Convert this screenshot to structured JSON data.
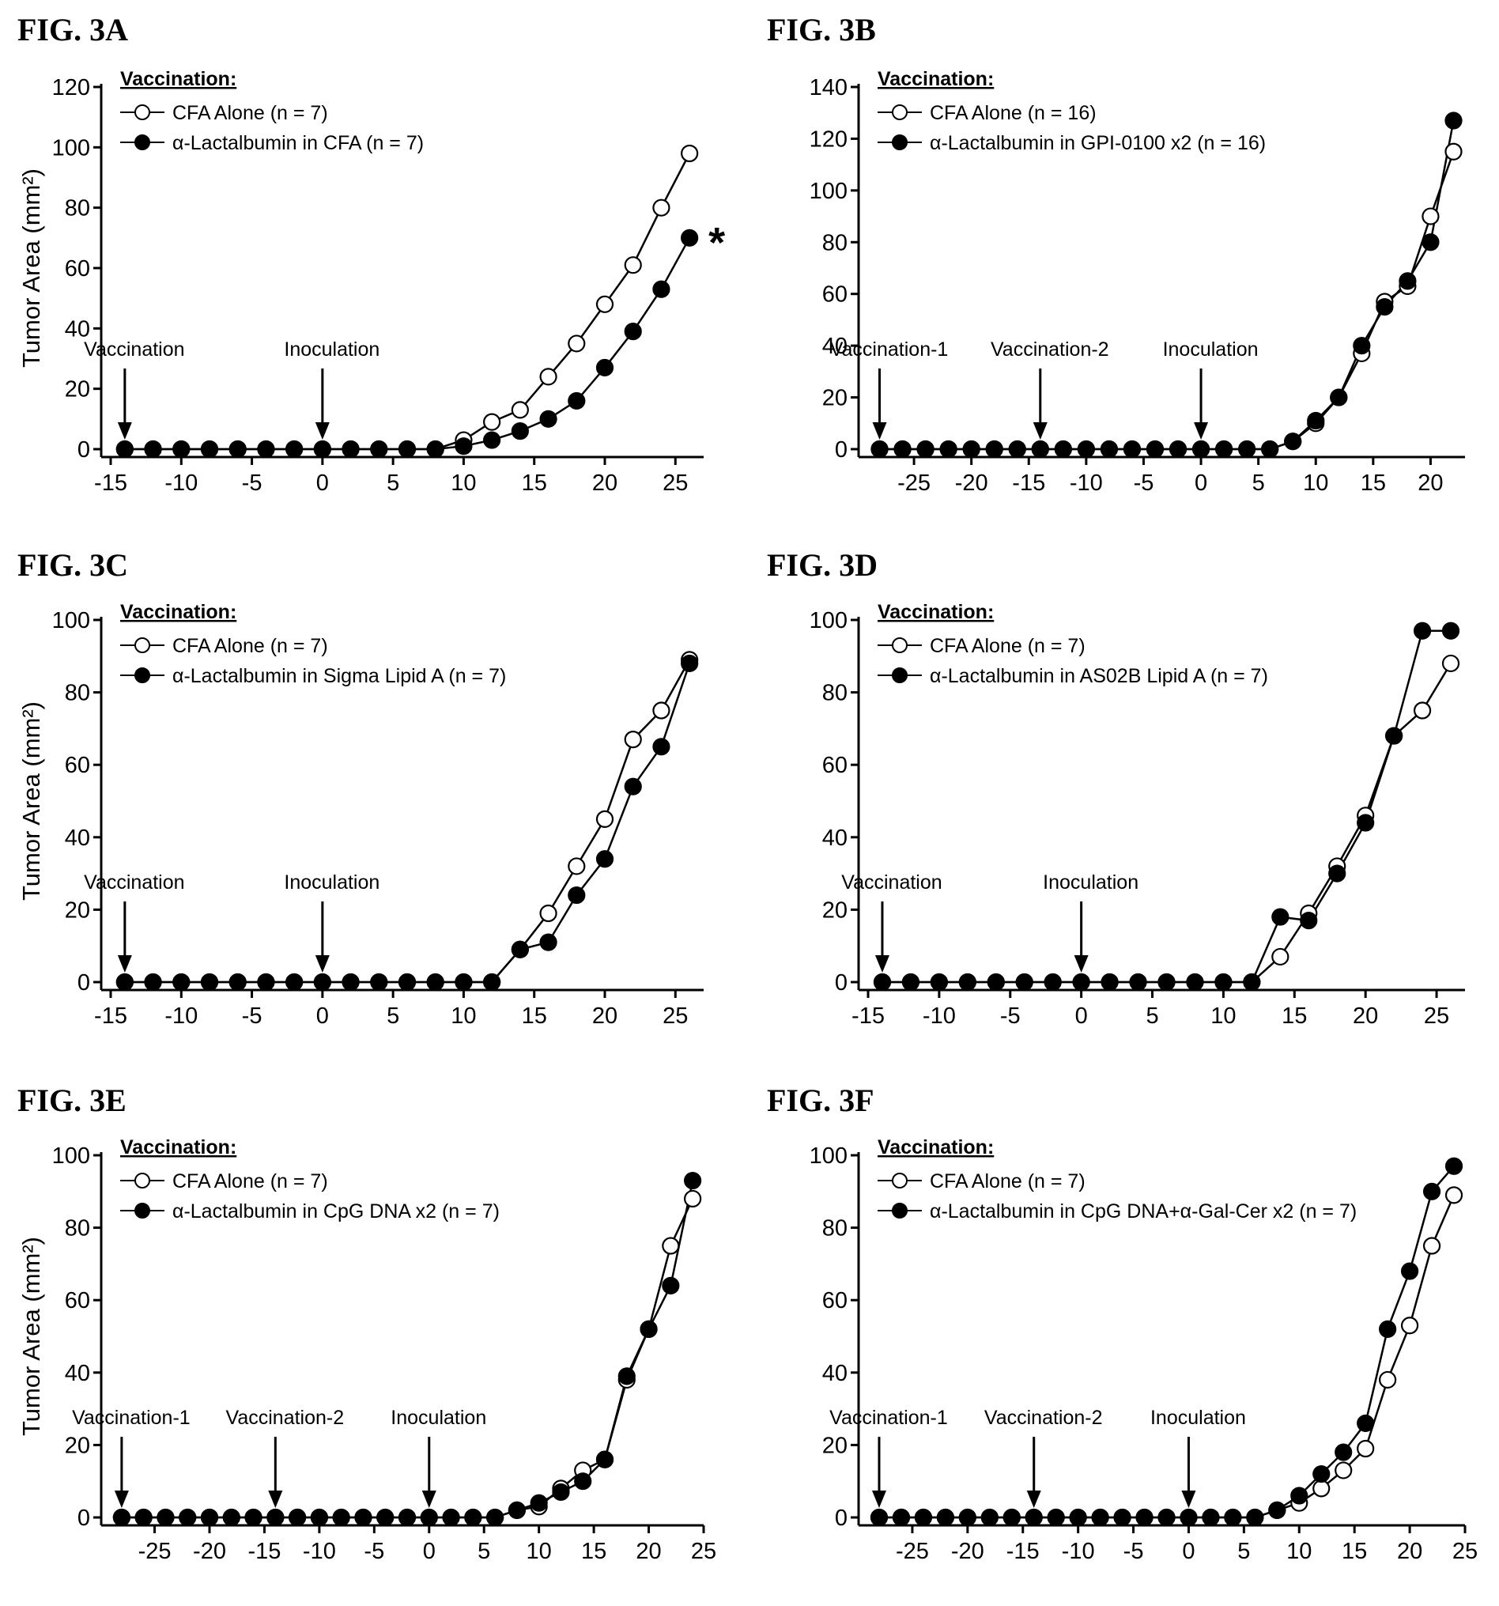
{
  "chart_data": [
    {
      "panel_label": "FIG. 3A",
      "type": "line",
      "ylabel": "Tumor Area (mm²)",
      "xlabel": "",
      "xlim": [
        -15,
        27
      ],
      "ylim": [
        0,
        120
      ],
      "xticks": [
        -15,
        -10,
        -5,
        0,
        5,
        10,
        15,
        20,
        25
      ],
      "yticks": [
        0,
        20,
        40,
        60,
        80,
        100,
        120
      ],
      "legend_title": "Vaccination:",
      "legend_position": "top-left",
      "series": [
        {
          "name": "CFA Alone (n = 7)",
          "marker": "open",
          "x": [
            -14,
            -12,
            -10,
            -8,
            -6,
            -4,
            -2,
            0,
            2,
            4,
            6,
            8,
            10,
            12,
            14,
            16,
            18,
            20,
            22,
            24,
            26
          ],
          "y": [
            0,
            0,
            0,
            0,
            0,
            0,
            0,
            0,
            0,
            0,
            0,
            0,
            3,
            9,
            13,
            24,
            35,
            48,
            61,
            80,
            98
          ]
        },
        {
          "name": "α-Lactalbumin in CFA (n = 7)",
          "marker": "filled",
          "x": [
            -14,
            -12,
            -10,
            -8,
            -6,
            -4,
            -2,
            0,
            2,
            4,
            6,
            8,
            10,
            12,
            14,
            16,
            18,
            20,
            22,
            24,
            26
          ],
          "y": [
            0,
            0,
            0,
            0,
            0,
            0,
            0,
            0,
            0,
            0,
            0,
            0,
            1,
            3,
            6,
            10,
            16,
            27,
            39,
            53,
            70
          ]
        }
      ],
      "annotations": [
        {
          "text": "Vaccination",
          "x": -14
        },
        {
          "text": "Inoculation",
          "x": 0
        }
      ],
      "significance": {
        "text": "*",
        "x": 26,
        "y": 70
      }
    },
    {
      "panel_label": "FIG. 3B",
      "type": "line",
      "ylabel": "",
      "xlabel": "",
      "xlim": [
        -29,
        23
      ],
      "ylim": [
        0,
        140
      ],
      "xticks": [
        -25,
        -20,
        -15,
        -10,
        -5,
        0,
        5,
        10,
        15,
        20
      ],
      "yticks": [
        0,
        20,
        40,
        60,
        80,
        100,
        120,
        140
      ],
      "legend_title": "Vaccination:",
      "legend_position": "top-left",
      "series": [
        {
          "name": "CFA Alone (n = 16)",
          "marker": "open",
          "x": [
            -28,
            -26,
            -24,
            -22,
            -20,
            -18,
            -16,
            -14,
            -12,
            -10,
            -8,
            -6,
            -4,
            -2,
            0,
            2,
            4,
            6,
            8,
            10,
            12,
            14,
            16,
            18,
            20,
            22
          ],
          "y": [
            0,
            0,
            0,
            0,
            0,
            0,
            0,
            0,
            0,
            0,
            0,
            0,
            0,
            0,
            0,
            0,
            0,
            0,
            3,
            10,
            20,
            37,
            57,
            63,
            90,
            115
          ]
        },
        {
          "name": "α-Lactalbumin in GPI-0100 x2 (n = 16)",
          "marker": "filled",
          "x": [
            -28,
            -26,
            -24,
            -22,
            -20,
            -18,
            -16,
            -14,
            -12,
            -10,
            -8,
            -6,
            -4,
            -2,
            0,
            2,
            4,
            6,
            8,
            10,
            12,
            14,
            16,
            18,
            20,
            22
          ],
          "y": [
            0,
            0,
            0,
            0,
            0,
            0,
            0,
            0,
            0,
            0,
            0,
            0,
            0,
            0,
            0,
            0,
            0,
            0,
            3,
            11,
            20,
            40,
            55,
            65,
            80,
            127
          ]
        }
      ],
      "annotations": [
        {
          "text": "Vaccination-1",
          "x": -28
        },
        {
          "text": "Vaccination-2",
          "x": -14
        },
        {
          "text": "Inoculation",
          "x": 0
        }
      ]
    },
    {
      "panel_label": "FIG. 3C",
      "type": "line",
      "ylabel": "Tumor Area (mm²)",
      "xlabel": "",
      "xlim": [
        -15,
        27
      ],
      "ylim": [
        0,
        100
      ],
      "xticks": [
        -15,
        -10,
        -5,
        0,
        5,
        10,
        15,
        20,
        25
      ],
      "yticks": [
        0,
        20,
        40,
        60,
        80,
        100
      ],
      "legend_title": "Vaccination:",
      "legend_position": "top-left",
      "series": [
        {
          "name": "CFA Alone (n = 7)",
          "marker": "open",
          "x": [
            -14,
            -12,
            -10,
            -8,
            -6,
            -4,
            -2,
            0,
            2,
            4,
            6,
            8,
            10,
            12,
            14,
            16,
            18,
            20,
            22,
            24,
            26
          ],
          "y": [
            0,
            0,
            0,
            0,
            0,
            0,
            0,
            0,
            0,
            0,
            0,
            0,
            0,
            0,
            9,
            19,
            32,
            45,
            67,
            75,
            89
          ]
        },
        {
          "name": "α-Lactalbumin in Sigma Lipid A (n = 7)",
          "marker": "filled",
          "x": [
            -14,
            -12,
            -10,
            -8,
            -6,
            -4,
            -2,
            0,
            2,
            4,
            6,
            8,
            10,
            12,
            14,
            16,
            18,
            20,
            22,
            24,
            26
          ],
          "y": [
            0,
            0,
            0,
            0,
            0,
            0,
            0,
            0,
            0,
            0,
            0,
            0,
            0,
            0,
            9,
            11,
            24,
            34,
            54,
            65,
            88
          ]
        }
      ],
      "annotations": [
        {
          "text": "Vaccination",
          "x": -14
        },
        {
          "text": "Inoculation",
          "x": 0
        }
      ]
    },
    {
      "panel_label": "FIG. 3D",
      "type": "line",
      "ylabel": "",
      "xlabel": "",
      "xlim": [
        -15,
        27
      ],
      "ylim": [
        0,
        100
      ],
      "xticks": [
        -15,
        -10,
        -5,
        0,
        5,
        10,
        15,
        20,
        25
      ],
      "yticks": [
        0,
        20,
        40,
        60,
        80,
        100
      ],
      "legend_title": "Vaccination:",
      "legend_position": "top-left",
      "series": [
        {
          "name": "CFA Alone (n = 7)",
          "marker": "open",
          "x": [
            -14,
            -12,
            -10,
            -8,
            -6,
            -4,
            -2,
            0,
            2,
            4,
            6,
            8,
            10,
            12,
            14,
            16,
            18,
            20,
            22,
            24,
            26
          ],
          "y": [
            0,
            0,
            0,
            0,
            0,
            0,
            0,
            0,
            0,
            0,
            0,
            0,
            0,
            0,
            7,
            19,
            32,
            46,
            68,
            75,
            88
          ]
        },
        {
          "name": "α-Lactalbumin in AS02B Lipid A (n = 7)",
          "marker": "filled",
          "x": [
            -14,
            -12,
            -10,
            -8,
            -6,
            -4,
            -2,
            0,
            2,
            4,
            6,
            8,
            10,
            12,
            14,
            16,
            18,
            20,
            22,
            24,
            26
          ],
          "y": [
            0,
            0,
            0,
            0,
            0,
            0,
            0,
            0,
            0,
            0,
            0,
            0,
            0,
            0,
            18,
            17,
            30,
            44,
            68,
            97,
            97
          ]
        }
      ],
      "annotations": [
        {
          "text": "Vaccination",
          "x": -14
        },
        {
          "text": "Inoculation",
          "x": 0
        }
      ]
    },
    {
      "panel_label": "FIG. 3E",
      "type": "line",
      "ylabel": "Tumor Area (mm²)",
      "xlabel": "",
      "xlim": [
        -29,
        25
      ],
      "ylim": [
        0,
        100
      ],
      "xticks": [
        -25,
        -20,
        -15,
        -10,
        -5,
        0,
        5,
        10,
        15,
        20,
        25
      ],
      "yticks": [
        0,
        20,
        40,
        60,
        80,
        100
      ],
      "legend_title": "Vaccination:",
      "legend_position": "top-left",
      "series": [
        {
          "name": "CFA Alone (n = 7)",
          "marker": "open",
          "x": [
            -28,
            -26,
            -24,
            -22,
            -20,
            -18,
            -16,
            -14,
            -12,
            -10,
            -8,
            -6,
            -4,
            -2,
            0,
            2,
            4,
            6,
            8,
            10,
            12,
            14,
            16,
            18,
            20,
            22,
            24
          ],
          "y": [
            0,
            0,
            0,
            0,
            0,
            0,
            0,
            0,
            0,
            0,
            0,
            0,
            0,
            0,
            0,
            0,
            0,
            0,
            2,
            3,
            8,
            13,
            16,
            38,
            52,
            75,
            88
          ]
        },
        {
          "name": "α-Lactalbumin in CpG DNA x2 (n = 7)",
          "marker": "filled",
          "x": [
            -28,
            -26,
            -24,
            -22,
            -20,
            -18,
            -16,
            -14,
            -12,
            -10,
            -8,
            -6,
            -4,
            -2,
            0,
            2,
            4,
            6,
            8,
            10,
            12,
            14,
            16,
            18,
            20,
            22,
            24
          ],
          "y": [
            0,
            0,
            0,
            0,
            0,
            0,
            0,
            0,
            0,
            0,
            0,
            0,
            0,
            0,
            0,
            0,
            0,
            0,
            2,
            4,
            7,
            10,
            16,
            39,
            52,
            64,
            93
          ]
        }
      ],
      "annotations": [
        {
          "text": "Vaccination-1",
          "x": -28
        },
        {
          "text": "Vaccination-2",
          "x": -14
        },
        {
          "text": "Inoculation",
          "x": 0
        }
      ]
    },
    {
      "panel_label": "FIG. 3F",
      "type": "line",
      "ylabel": "",
      "xlabel": "",
      "xlim": [
        -29,
        25
      ],
      "ylim": [
        0,
        100
      ],
      "xticks": [
        -25,
        -20,
        -15,
        -10,
        -5,
        0,
        5,
        10,
        15,
        20,
        25
      ],
      "yticks": [
        0,
        20,
        40,
        60,
        80,
        100
      ],
      "legend_title": "Vaccination:",
      "legend_position": "top-left",
      "series": [
        {
          "name": "CFA Alone (n = 7)",
          "marker": "open",
          "x": [
            -28,
            -26,
            -24,
            -22,
            -20,
            -18,
            -16,
            -14,
            -12,
            -10,
            -8,
            -6,
            -4,
            -2,
            0,
            2,
            4,
            6,
            8,
            10,
            12,
            14,
            16,
            18,
            20,
            22,
            24
          ],
          "y": [
            0,
            0,
            0,
            0,
            0,
            0,
            0,
            0,
            0,
            0,
            0,
            0,
            0,
            0,
            0,
            0,
            0,
            0,
            2,
            4,
            8,
            13,
            19,
            38,
            53,
            75,
            89
          ]
        },
        {
          "name": "α-Lactalbumin in CpG DNA+α-Gal-Cer x2 (n = 7)",
          "marker": "filled",
          "x": [
            -28,
            -26,
            -24,
            -22,
            -20,
            -18,
            -16,
            -14,
            -12,
            -10,
            -8,
            -6,
            -4,
            -2,
            0,
            2,
            4,
            6,
            8,
            10,
            12,
            14,
            16,
            18,
            20,
            22,
            24
          ],
          "y": [
            0,
            0,
            0,
            0,
            0,
            0,
            0,
            0,
            0,
            0,
            0,
            0,
            0,
            0,
            0,
            0,
            0,
            0,
            2,
            6,
            12,
            18,
            26,
            52,
            68,
            90,
            97
          ]
        }
      ],
      "annotations": [
        {
          "text": "Vaccination-1",
          "x": -28
        },
        {
          "text": "Vaccination-2",
          "x": -14
        },
        {
          "text": "Inoculation",
          "x": 0
        }
      ]
    }
  ]
}
